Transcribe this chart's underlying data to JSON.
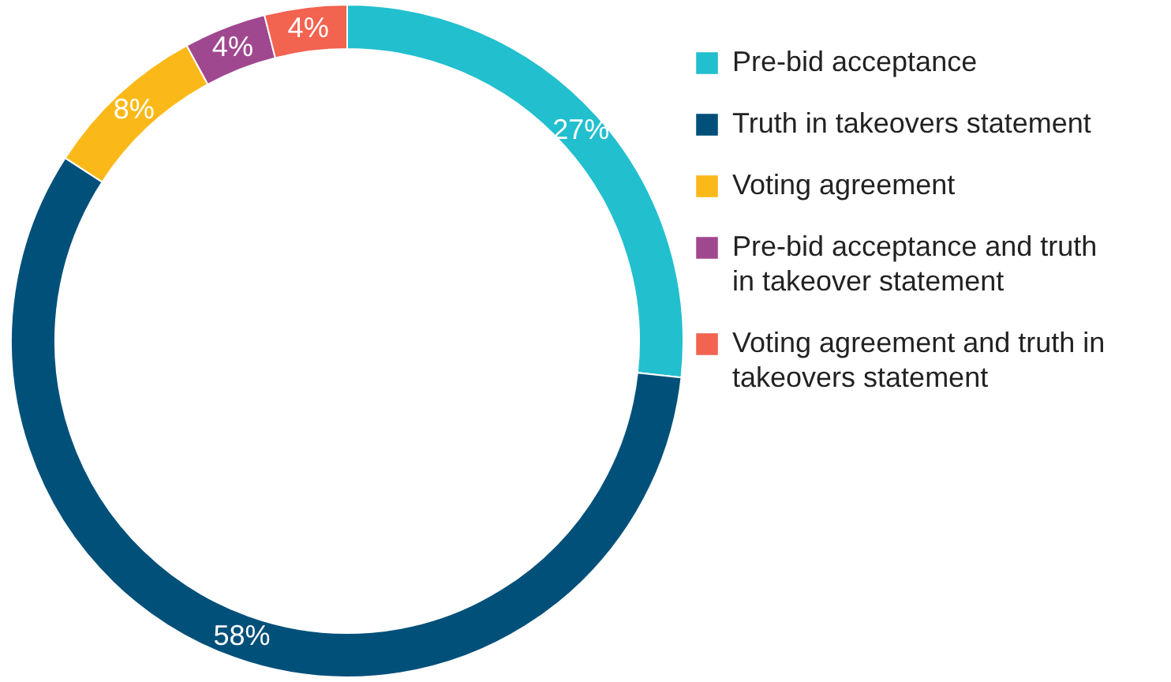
{
  "chart_data": {
    "type": "donut",
    "categories": [
      "Pre-bid acceptance",
      "Truth in takeovers statement",
      "Voting agreement",
      "Pre-bid acceptance and truth in takeover statement",
      "Voting agreement and truth in takeovers statement"
    ],
    "values": [
      27,
      58,
      8,
      4,
      4
    ],
    "colors": [
      "#22bfcf",
      "#00507a",
      "#fbb919",
      "#a0488f",
      "#f26350"
    ],
    "value_labels": [
      "27%",
      "58%",
      "8%",
      "4%",
      "4%"
    ],
    "legend": "right"
  }
}
